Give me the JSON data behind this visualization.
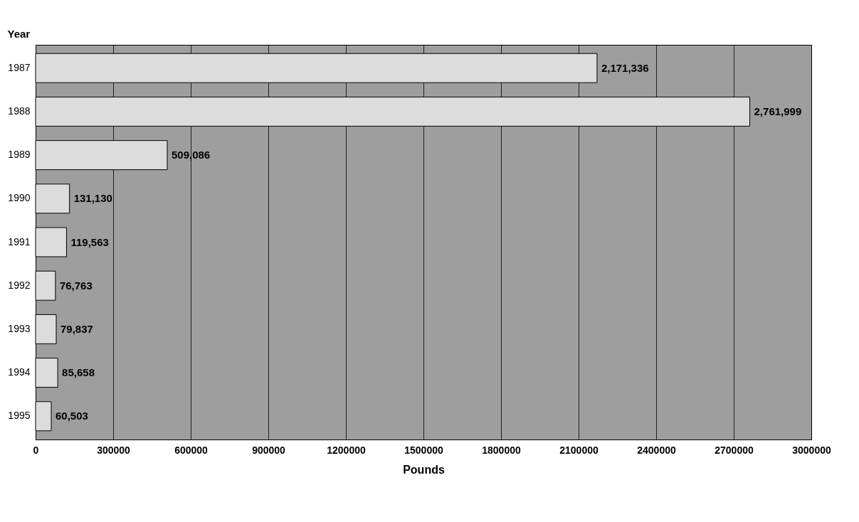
{
  "chart_data": {
    "type": "bar",
    "orientation": "horizontal",
    "xlabel": "Pounds",
    "ylabel": "Year",
    "categories": [
      "1987",
      "1988",
      "1989",
      "1990",
      "1991",
      "1992",
      "1993",
      "1994",
      "1995"
    ],
    "values": [
      2171336,
      2761999,
      509086,
      131130,
      119563,
      76763,
      79837,
      85658,
      60503
    ],
    "value_labels": [
      "2,171,336",
      "2,761,999",
      "509,086",
      "131,130",
      "119,563",
      "76,763",
      "79,837",
      "85,658",
      "60,503"
    ],
    "color": "#dcdcdc",
    "xlim": [
      0,
      3000000
    ],
    "xticks": [
      0,
      300000,
      600000,
      900000,
      1200000,
      1500000,
      1800000,
      2100000,
      2400000,
      2700000,
      3000000
    ],
    "grid": "x"
  }
}
